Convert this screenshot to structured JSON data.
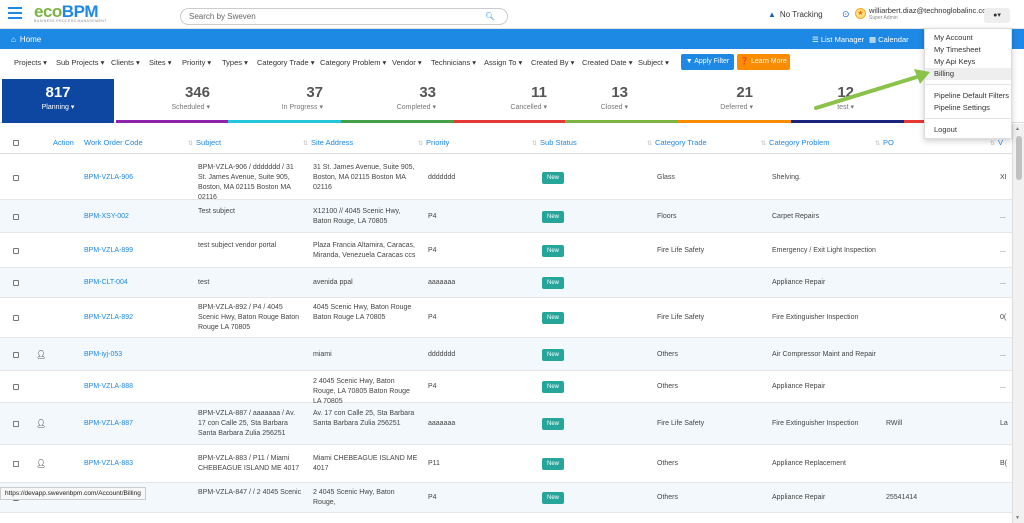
{
  "header": {
    "logo_eco": "eco",
    "logo_bpm": "BPM",
    "logo_sub": "BUSINESS PROCESS MANAGEMENT",
    "search_placeholder": "Search by Sweven",
    "tracking": "No Tracking",
    "user_email": "williarbert.diaz@technoglobalinc.com",
    "user_role": "Super Admin"
  },
  "nav": {
    "home": "Home",
    "list_manager": "List Manager",
    "calendar": "Calendar"
  },
  "filters": [
    "Projects",
    "Sub Projects",
    "Clients",
    "Sites",
    "Priority",
    "Types",
    "Category Trade",
    "Category Problem",
    "Vendor",
    "Technicians",
    "Assign To",
    "Created By",
    "Created Date",
    "Subject"
  ],
  "buttons": {
    "apply": "Apply Filter",
    "learn": "Learn More"
  },
  "stats": [
    {
      "num": "817",
      "label": "Planning",
      "color": "#1565c0"
    },
    {
      "num": "346",
      "label": "Scheduled",
      "color": "#8e24aa"
    },
    {
      "num": "37",
      "label": "In Progress",
      "color": "#26c6da"
    },
    {
      "num": "33",
      "label": "Completed",
      "color": "#43a047"
    },
    {
      "num": "11",
      "label": "Cancelled",
      "color": "#e53935"
    },
    {
      "num": "13",
      "label": "Closed",
      "color": "#7cb342"
    },
    {
      "num": "21",
      "label": "Deferred",
      "color": "#fb8c00"
    },
    {
      "num": "12",
      "label": "test",
      "color": "#1a237e"
    }
  ],
  "table": {
    "headers": [
      "Action",
      "Work Order Code",
      "Subject",
      "Site Address",
      "Priority",
      "Sub Status",
      "Category Trade",
      "Category Problem",
      "PO",
      "V"
    ],
    "rows": [
      {
        "code": "BPM-VZLA-906",
        "subject": "BPM-VZLA-906 / ddddddd / 31 St. James Avenue, Suite 905, Boston, MA 02115 Boston MA 02116",
        "address": "31 St. James Avenue, Suite 905, Boston, MA 02115 Boston MA 02116",
        "priority": "ddddddd",
        "status": "New",
        "trade": "Glass",
        "problem": "Shelving.",
        "po": "",
        "v": "XI"
      },
      {
        "code": "BPM-XSY-002",
        "subject": "Test subject",
        "address": "X12100 // 4045 Scenic Hwy, Baton Rouge, LA 70805",
        "priority": "P4",
        "status": "New",
        "trade": "Floors",
        "problem": "Carpet Repairs",
        "po": "",
        "v": "..."
      },
      {
        "code": "BPM-VZLA-899",
        "subject": "test subject vendor portal",
        "address": "Plaza Francia Altamira, Caracas, Miranda, Venezuela Caracas ccs",
        "priority": "P4",
        "status": "New",
        "trade": "Fire Life Safety",
        "problem": "Emergency / Exit Light Inspection",
        "po": "",
        "v": "..."
      },
      {
        "code": "BPM-CLT-004",
        "subject": "test",
        "address": "avenida ppal",
        "priority": "aaaaaaa",
        "status": "New",
        "trade": "",
        "problem": "Appliance Repair",
        "po": "",
        "v": "..."
      },
      {
        "code": "BPM-VZLA-892",
        "subject": "BPM-VZLA-892 / P4 / 4045 Scenic Hwy, Baton Rouge Baton Rouge LA 70805",
        "address": "4045 Scenic Hwy, Baton Rouge Baton Rouge LA 70805",
        "priority": "P4",
        "status": "New",
        "trade": "Fire Life Safety",
        "problem": "Fire Extinguisher Inspection",
        "po": "",
        "v": "0("
      },
      {
        "code": "BPM-iyj-053",
        "subject": "",
        "address": "miami",
        "priority": "ddddddd",
        "status": "New",
        "trade": "Others",
        "problem": "Air Compressor Maint and Repair",
        "po": "",
        "v": "..."
      },
      {
        "code": "BPM-VZLA-888",
        "subject": "",
        "address": "2 4045 Scenic Hwy, Baton Rouge, LA 70805 Baton Rouge LA 70805",
        "priority": "P4",
        "status": "New",
        "trade": "Others",
        "problem": "Appliance Repair",
        "po": "",
        "v": "..."
      },
      {
        "code": "BPM-VZLA-887",
        "subject": "BPM-VZLA-887 / aaaaaaa / Av. 17 con Calle 25, Sta Barbara Santa Barbara Zulia 256251",
        "address": "Av. 17 con Calle 25, Sta Barbara Santa Barbara Zulia 256251",
        "priority": "aaaaaaa",
        "status": "New",
        "trade": "Fire Life Safety",
        "problem": "Fire Extinguisher Inspection",
        "po": "RWill",
        "v": "La"
      },
      {
        "code": "BPM-VZLA-883",
        "subject": "BPM-VZLA-883 / P11 / Miami CHEBEAGUE ISLAND ME 4017",
        "address": "Miami CHEBEAGUE ISLAND ME 4017",
        "priority": "P11",
        "status": "New",
        "trade": "Others",
        "problem": "Appliance Replacement",
        "po": "",
        "v": "B("
      },
      {
        "code": "",
        "subject": "BPM-VZLA-847 / / 2 4045 Scenic",
        "address": "2 4045 Scenic Hwy, Baton Rouge,",
        "priority": "P4",
        "status": "New",
        "trade": "Others",
        "problem": "Appliance Repair",
        "po": "25541414",
        "v": ""
      }
    ]
  },
  "dropdown": {
    "items": [
      "My Account",
      "My Timesheet",
      "My Api Keys",
      "Billing",
      "Pipeline Default Filters",
      "Pipeline Settings",
      "Logout"
    ]
  },
  "status_url": "https://devapp.swevenbpm.com/Account/Billing"
}
